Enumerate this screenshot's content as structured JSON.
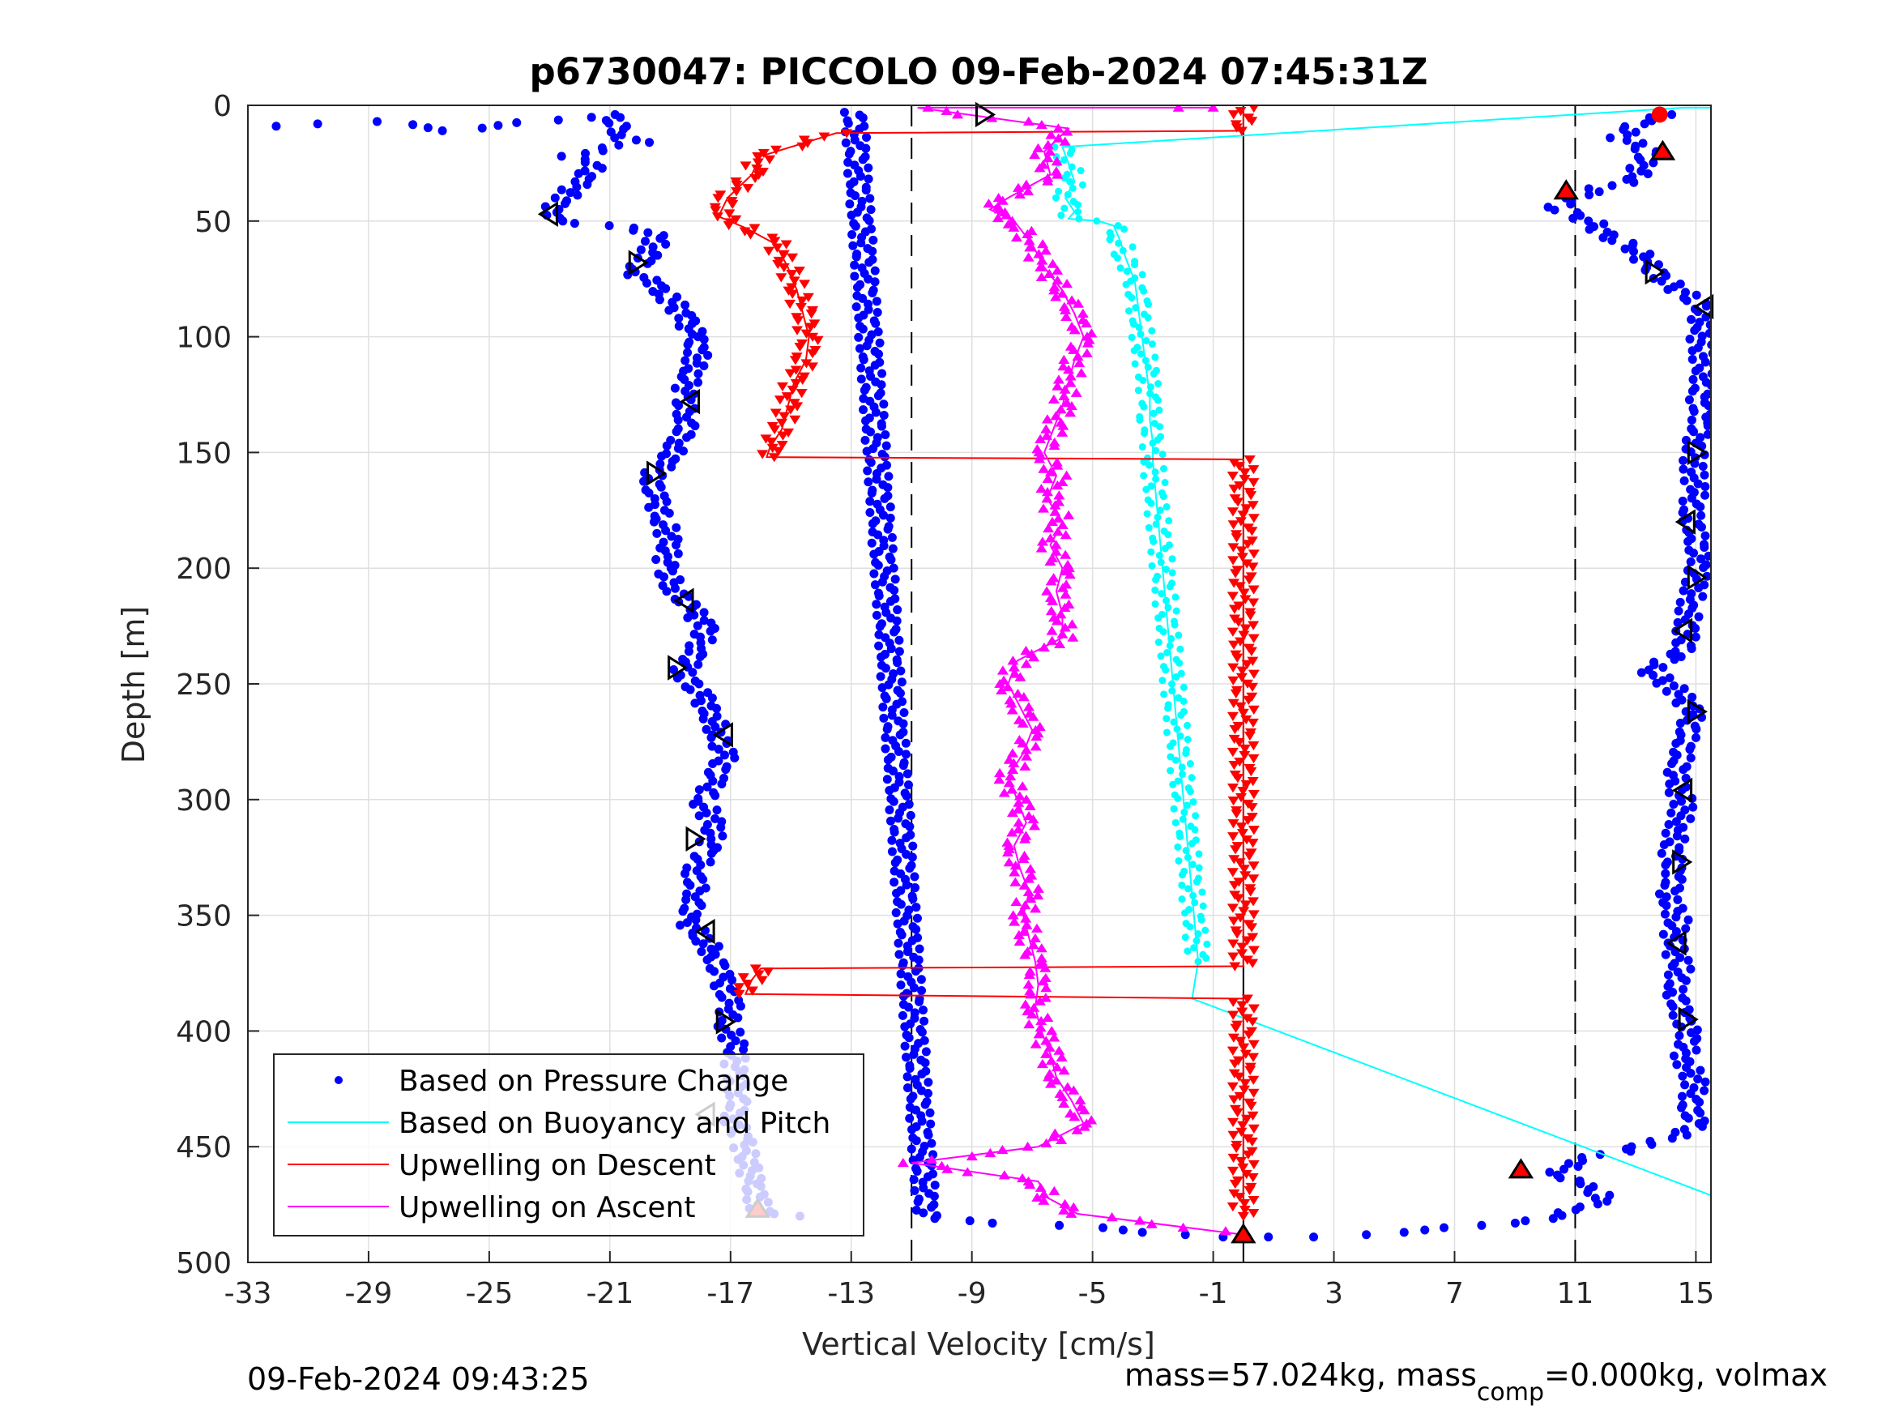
{
  "chart_data": {
    "type": "scatter",
    "title": "p6730047: PICCOLO 09-Feb-2024 07:45:31Z",
    "xlabel": "Vertical Velocity [cm/s]",
    "ylabel": "Depth [m]",
    "xlim": [
      -33,
      15.5
    ],
    "ylim": [
      500,
      0
    ],
    "y_reversed": true,
    "xticks": [
      -33,
      -29,
      -25,
      -21,
      -17,
      -13,
      -9,
      -5,
      -1,
      3,
      7,
      11,
      15
    ],
    "yticks": [
      0,
      50,
      100,
      150,
      200,
      250,
      300,
      350,
      400,
      450,
      500
    ],
    "grid": true,
    "legend_position": "bottom-left",
    "vlines": [
      {
        "x": -11,
        "style": "dashed"
      },
      {
        "x": 11,
        "style": "dashed"
      },
      {
        "x": 0,
        "style": "solid"
      }
    ],
    "series": [
      {
        "name": "Based on Pressure Change",
        "style": "dots",
        "color": "#0000ff",
        "descent": [
          [
            -32.2,
            9
          ],
          [
            -28.5,
            7
          ],
          [
            -26.5,
            11
          ],
          [
            -21,
            4
          ],
          [
            -20.5,
            14
          ],
          [
            -20,
            16
          ],
          [
            -22.5,
            22
          ],
          [
            -21.5,
            26
          ],
          [
            -22,
            33
          ],
          [
            -22.5,
            40
          ],
          [
            -23,
            45
          ],
          [
            -22.5,
            50
          ],
          [
            -20.5,
            53
          ],
          [
            -19.5,
            55
          ],
          [
            -19.5,
            60
          ],
          [
            -19.8,
            66
          ],
          [
            -20.2,
            72
          ],
          [
            -19.5,
            78
          ],
          [
            -19,
            84
          ],
          [
            -18.5,
            92
          ],
          [
            -18.2,
            100
          ],
          [
            -18.1,
            108
          ],
          [
            -18.3,
            116
          ],
          [
            -18.6,
            126
          ],
          [
            -18.4,
            136
          ],
          [
            -18.7,
            146
          ],
          [
            -19.2,
            155
          ],
          [
            -19.6,
            160
          ],
          [
            -19.5,
            170
          ],
          [
            -19.2,
            180
          ],
          [
            -19,
            190
          ],
          [
            -19.2,
            200
          ],
          [
            -18.8,
            210
          ],
          [
            -18.3,
            218
          ],
          [
            -17.8,
            226
          ],
          [
            -18.1,
            236
          ],
          [
            -18.6,
            245
          ],
          [
            -18,
            255
          ],
          [
            -17.6,
            264
          ],
          [
            -17.4,
            272
          ],
          [
            -17.2,
            282
          ],
          [
            -17.6,
            292
          ],
          [
            -17.9,
            302
          ],
          [
            -17.5,
            312
          ],
          [
            -17.8,
            322
          ],
          [
            -18.2,
            332
          ],
          [
            -18.1,
            342
          ],
          [
            -18.5,
            352
          ],
          [
            -17.9,
            360
          ],
          [
            -17.5,
            368
          ],
          [
            -17.3,
            378
          ],
          [
            -17,
            388
          ],
          [
            -17.1,
            398
          ],
          [
            -16.8,
            408
          ],
          [
            -16.9,
            418
          ],
          [
            -16.7,
            428
          ],
          [
            -16.9,
            438
          ],
          [
            -16.6,
            448
          ],
          [
            -16.4,
            458
          ],
          [
            -16.3,
            466
          ],
          [
            -16.1,
            474
          ],
          [
            -16,
            478
          ],
          [
            -14.7,
            480
          ]
        ],
        "ascent": [
          [
            -12.9,
            3
          ],
          [
            -10.5,
            481
          ],
          [
            -8,
            483
          ],
          [
            -6,
            484
          ],
          [
            -4,
            486
          ],
          [
            -2,
            488
          ],
          [
            -1,
            489
          ],
          [
            0.5,
            489
          ],
          [
            2,
            489
          ],
          [
            4,
            488
          ],
          [
            6,
            486
          ],
          [
            8,
            484
          ],
          [
            10,
            481
          ],
          [
            11.5,
            476
          ],
          [
            12,
            471
          ],
          [
            11,
            466
          ],
          [
            10.5,
            461
          ],
          [
            11,
            456
          ],
          [
            12.5,
            452
          ],
          [
            13.5,
            449
          ],
          [
            14.5,
            445
          ],
          [
            15,
            440
          ],
          [
            14.8,
            432
          ],
          [
            15,
            422
          ],
          [
            14.6,
            412
          ],
          [
            14.8,
            402
          ],
          [
            14.5,
            392
          ],
          [
            14.3,
            382
          ],
          [
            14.5,
            372
          ],
          [
            14.2,
            362
          ],
          [
            14.4,
            352
          ],
          [
            14.1,
            342
          ],
          [
            14.3,
            332
          ],
          [
            14.2,
            322
          ],
          [
            14.4,
            312
          ],
          [
            14.6,
            302
          ],
          [
            14.3,
            292
          ],
          [
            14.5,
            282
          ],
          [
            14.7,
            272
          ],
          [
            14.9,
            262
          ],
          [
            14.3,
            252
          ],
          [
            13.4,
            244
          ],
          [
            14.6,
            236
          ],
          [
            14.7,
            226
          ],
          [
            14.8,
            216
          ],
          [
            15,
            206
          ],
          [
            15.1,
            196
          ],
          [
            15,
            186
          ],
          [
            14.8,
            176
          ],
          [
            15,
            166
          ],
          [
            14.9,
            156
          ],
          [
            15,
            146
          ],
          [
            15.2,
            136
          ],
          [
            15.1,
            126
          ],
          [
            15.3,
            116
          ],
          [
            15.2,
            106
          ],
          [
            15.1,
            96
          ],
          [
            15.3,
            88
          ],
          [
            14.7,
            82
          ],
          [
            14,
            76
          ],
          [
            13.5,
            70
          ],
          [
            13,
            62
          ],
          [
            12,
            56
          ],
          [
            11.5,
            50
          ],
          [
            10.3,
            44
          ],
          [
            11,
            40
          ],
          [
            11.8,
            36
          ],
          [
            13,
            32
          ],
          [
            13.2,
            26
          ],
          [
            13.5,
            20
          ],
          [
            12.5,
            14
          ],
          [
            13,
            8
          ],
          [
            14.2,
            4
          ]
        ]
      },
      {
        "name": "Based on Buoyancy and Pitch",
        "style": "line",
        "color": "#00ffff",
        "values": [
          [
            15.5,
            1
          ],
          [
            14.6,
            1
          ],
          [
            -6,
            18
          ],
          [
            -5.8,
            25
          ],
          [
            -5.6,
            33
          ],
          [
            -5.9,
            40
          ],
          [
            -5.6,
            46
          ],
          [
            -5.8,
            49
          ],
          [
            -4.8,
            50
          ],
          [
            -4.3,
            52
          ],
          [
            -4.1,
            58
          ],
          [
            -3.9,
            66
          ],
          [
            -3.6,
            76
          ],
          [
            -3.5,
            86
          ],
          [
            -3.4,
            96
          ],
          [
            -3.3,
            106
          ],
          [
            -3.2,
            116
          ],
          [
            -3.1,
            126
          ],
          [
            -3.1,
            136
          ],
          [
            -3,
            146
          ],
          [
            -3,
            154
          ],
          [
            -1.5,
            370
          ],
          [
            -1.7,
            386
          ],
          [
            15.5,
            471
          ]
        ]
      },
      {
        "name": "Upwelling on Descent",
        "style": "line-markers-down-triangle",
        "color": "#ff0000",
        "values": [
          [
            0,
            1
          ],
          [
            0,
            11
          ],
          [
            -13.5,
            12
          ],
          [
            -16,
            22
          ],
          [
            -16.3,
            30
          ],
          [
            -17.1,
            40
          ],
          [
            -17.4,
            48
          ],
          [
            -16.5,
            53
          ],
          [
            -15.5,
            60
          ],
          [
            -15.1,
            70
          ],
          [
            -14.8,
            80
          ],
          [
            -14.6,
            90
          ],
          [
            -14.4,
            100
          ],
          [
            -14.5,
            110
          ],
          [
            -14.9,
            120
          ],
          [
            -15.1,
            130
          ],
          [
            -15.3,
            140
          ],
          [
            -15.7,
            148
          ],
          [
            -15.8,
            152
          ],
          [
            0,
            153
          ],
          [
            0,
            372
          ],
          [
            -16,
            373
          ],
          [
            -16.3,
            378
          ],
          [
            -16.5,
            384
          ],
          [
            0,
            386
          ],
          [
            0,
            480
          ]
        ]
      },
      {
        "name": "Upwelling on Ascent",
        "style": "line-markers-up-triangle",
        "color": "#ff00ff",
        "values": [
          [
            0,
            488
          ],
          [
            -5.5,
            479
          ],
          [
            -6.5,
            472
          ],
          [
            -6.8,
            465
          ],
          [
            -11,
            457
          ],
          [
            -6.8,
            450
          ],
          [
            -5.3,
            440
          ],
          [
            -5.7,
            430
          ],
          [
            -6.2,
            420
          ],
          [
            -6.4,
            410
          ],
          [
            -6.7,
            400
          ],
          [
            -6.9,
            390
          ],
          [
            -6.8,
            380
          ],
          [
            -6.9,
            370
          ],
          [
            -7.1,
            360
          ],
          [
            -7.3,
            350
          ],
          [
            -7.1,
            340
          ],
          [
            -7.4,
            330
          ],
          [
            -7.6,
            320
          ],
          [
            -7.2,
            310
          ],
          [
            -7.5,
            300
          ],
          [
            -7.8,
            290
          ],
          [
            -7.3,
            280
          ],
          [
            -7,
            270
          ],
          [
            -7.4,
            260
          ],
          [
            -7.8,
            250
          ],
          [
            -7.5,
            240
          ],
          [
            -6,
            230
          ],
          [
            -6,
            220
          ],
          [
            -6.2,
            210
          ],
          [
            -6,
            200
          ],
          [
            -6.4,
            190
          ],
          [
            -6,
            180
          ],
          [
            -6.5,
            170
          ],
          [
            -6.2,
            160
          ],
          [
            -6.6,
            150
          ],
          [
            -6.3,
            140
          ],
          [
            -6,
            130
          ],
          [
            -5.8,
            120
          ],
          [
            -5.6,
            110
          ],
          [
            -5.3,
            100
          ],
          [
            -5.6,
            90
          ],
          [
            -6,
            80
          ],
          [
            -6.6,
            70
          ],
          [
            -7,
            60
          ],
          [
            -7.6,
            50
          ],
          [
            -8.4,
            45
          ],
          [
            -7.8,
            40
          ],
          [
            -6.4,
            30
          ],
          [
            -6.6,
            20
          ],
          [
            -5.8,
            10
          ],
          [
            -10.8,
            1
          ],
          [
            -2.5,
            1
          ],
          [
            -1,
            1
          ]
        ]
      }
    ],
    "markers": [
      {
        "style": "open-triangle",
        "points": [
          [
            -8.6,
            4
          ],
          [
            -23,
            47
          ],
          [
            -20.1,
            68
          ],
          [
            -18.3,
            128
          ],
          [
            -19.5,
            159
          ],
          [
            -18.5,
            214
          ],
          [
            -18.8,
            243
          ],
          [
            -17.2,
            272
          ],
          [
            -18.2,
            317
          ],
          [
            -17.8,
            357
          ],
          [
            -17.2,
            396
          ],
          [
            -17.8,
            436
          ],
          [
            13.6,
            72
          ],
          [
            15.3,
            87
          ],
          [
            15,
            150
          ],
          [
            14.7,
            180
          ],
          [
            15,
            204
          ],
          [
            14.6,
            227
          ],
          [
            15,
            262
          ],
          [
            14.6,
            296
          ],
          [
            14.5,
            327
          ],
          [
            14.4,
            362
          ],
          [
            14.7,
            395
          ]
        ]
      },
      {
        "style": "filled-red-triangle",
        "points": [
          [
            13.9,
            20
          ],
          [
            10.7,
            37
          ],
          [
            -16.1,
            477
          ],
          [
            9.2,
            460
          ],
          [
            0,
            488
          ]
        ]
      },
      {
        "style": "filled-red-dot",
        "points": [
          [
            13.8,
            4
          ]
        ]
      }
    ]
  },
  "legend": {
    "items": [
      {
        "label": "Based on Pressure Change",
        "color": "#0000ff",
        "kind": "dot"
      },
      {
        "label": "Based on Buoyancy and Pitch",
        "color": "#00ffff",
        "kind": "line"
      },
      {
        "label": "Upwelling on Descent",
        "color": "#ff0000",
        "kind": "line"
      },
      {
        "label": "Upwelling on Ascent",
        "color": "#ff00ff",
        "kind": "line"
      }
    ]
  },
  "footer": {
    "timestamp": "09-Feb-2024 09:43:25",
    "mass_text": "mass=57.024kg, mass",
    "mass_sub": "comp",
    "mass_rest": "=0.000kg, volmax"
  }
}
